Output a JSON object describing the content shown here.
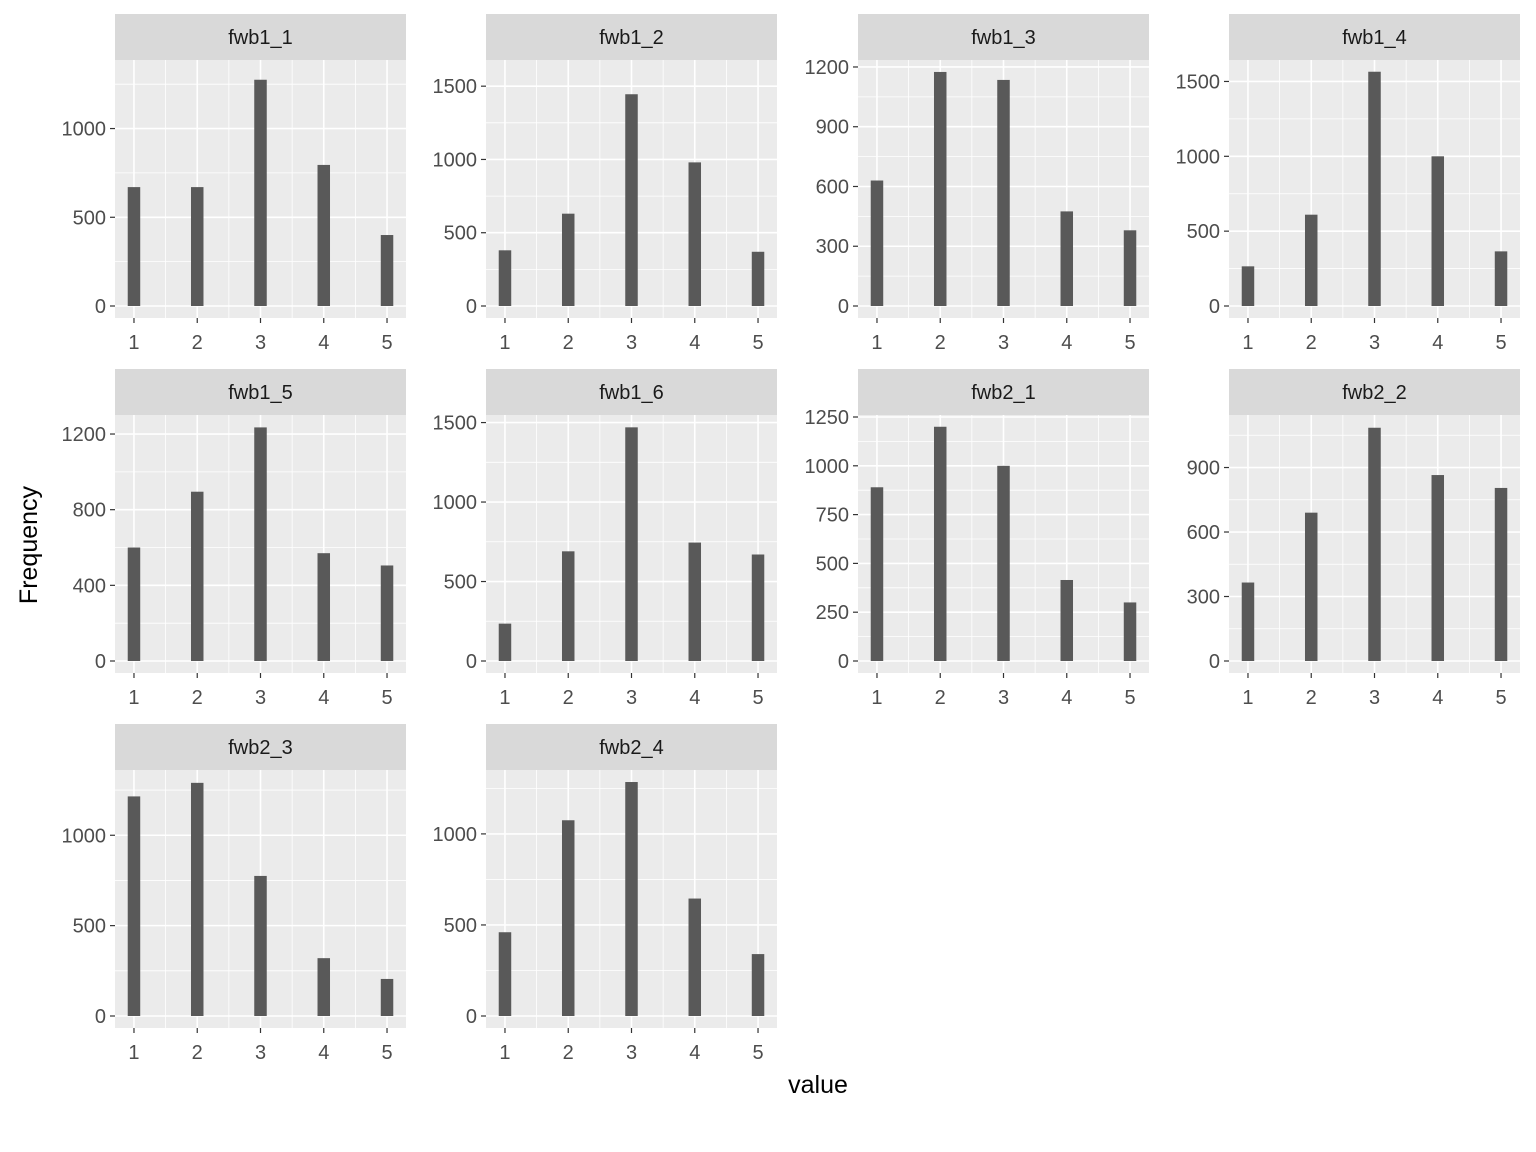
{
  "labels": {
    "xlabel": "value",
    "ylabel": "Frequency"
  },
  "colors": {
    "panel_bg": "#ebebeb",
    "strip_bg": "#d9d9d9",
    "bar": "#595959",
    "grid": "#ffffff",
    "tick": "#333333"
  },
  "chart_data": {
    "type": "bar",
    "facets": true,
    "xlabel": "value",
    "ylabel": "Frequency",
    "grid": true,
    "categories": [
      1,
      2,
      3,
      4,
      5
    ],
    "panels": [
      {
        "name": "fwb1_1",
        "values": [
          670,
          670,
          1275,
          795,
          400
        ],
        "ylim": [
          0,
          1375
        ],
        "yticks": [
          0,
          500,
          1000
        ]
      },
      {
        "name": "fwb1_2",
        "values": [
          380,
          630,
          1445,
          980,
          370
        ],
        "ylim": [
          0,
          1665
        ],
        "yticks": [
          0,
          500,
          1000,
          1500
        ]
      },
      {
        "name": "fwb1_3",
        "values": [
          630,
          1175,
          1135,
          475,
          380
        ],
        "ylim": [
          0,
          1225
        ],
        "yticks": [
          0,
          300,
          600,
          900,
          1200
        ]
      },
      {
        "name": "fwb1_4",
        "values": [
          265,
          610,
          1565,
          1000,
          365
        ],
        "ylim": [
          0,
          1630
        ],
        "yticks": [
          0,
          500,
          1000,
          1500
        ]
      },
      {
        "name": "fwb1_5",
        "values": [
          600,
          895,
          1235,
          570,
          505
        ],
        "ylim": [
          0,
          1290
        ],
        "yticks": [
          0,
          400,
          800,
          1200
        ]
      },
      {
        "name": "fwb1_6",
        "values": [
          235,
          690,
          1470,
          745,
          670
        ],
        "ylim": [
          0,
          1535
        ],
        "yticks": [
          0,
          500,
          1000,
          1500
        ]
      },
      {
        "name": "fwb2_1",
        "values": [
          890,
          1200,
          1000,
          415,
          300
        ],
        "ylim": [
          0,
          1250
        ],
        "yticks": [
          0,
          250,
          500,
          750,
          1000,
          1250
        ]
      },
      {
        "name": "fwb2_2",
        "values": [
          365,
          690,
          1085,
          865,
          805
        ],
        "ylim": [
          0,
          1135
        ],
        "yticks": [
          0,
          300,
          600,
          900
        ]
      },
      {
        "name": "fwb2_3",
        "values": [
          1215,
          1290,
          775,
          320,
          205
        ],
        "ylim": [
          0,
          1350
        ],
        "yticks": [
          0,
          500,
          1000
        ]
      },
      {
        "name": "fwb2_4",
        "values": [
          460,
          1075,
          1285,
          645,
          340
        ],
        "ylim": [
          0,
          1340
        ],
        "yticks": [
          0,
          500,
          1000
        ]
      }
    ]
  }
}
